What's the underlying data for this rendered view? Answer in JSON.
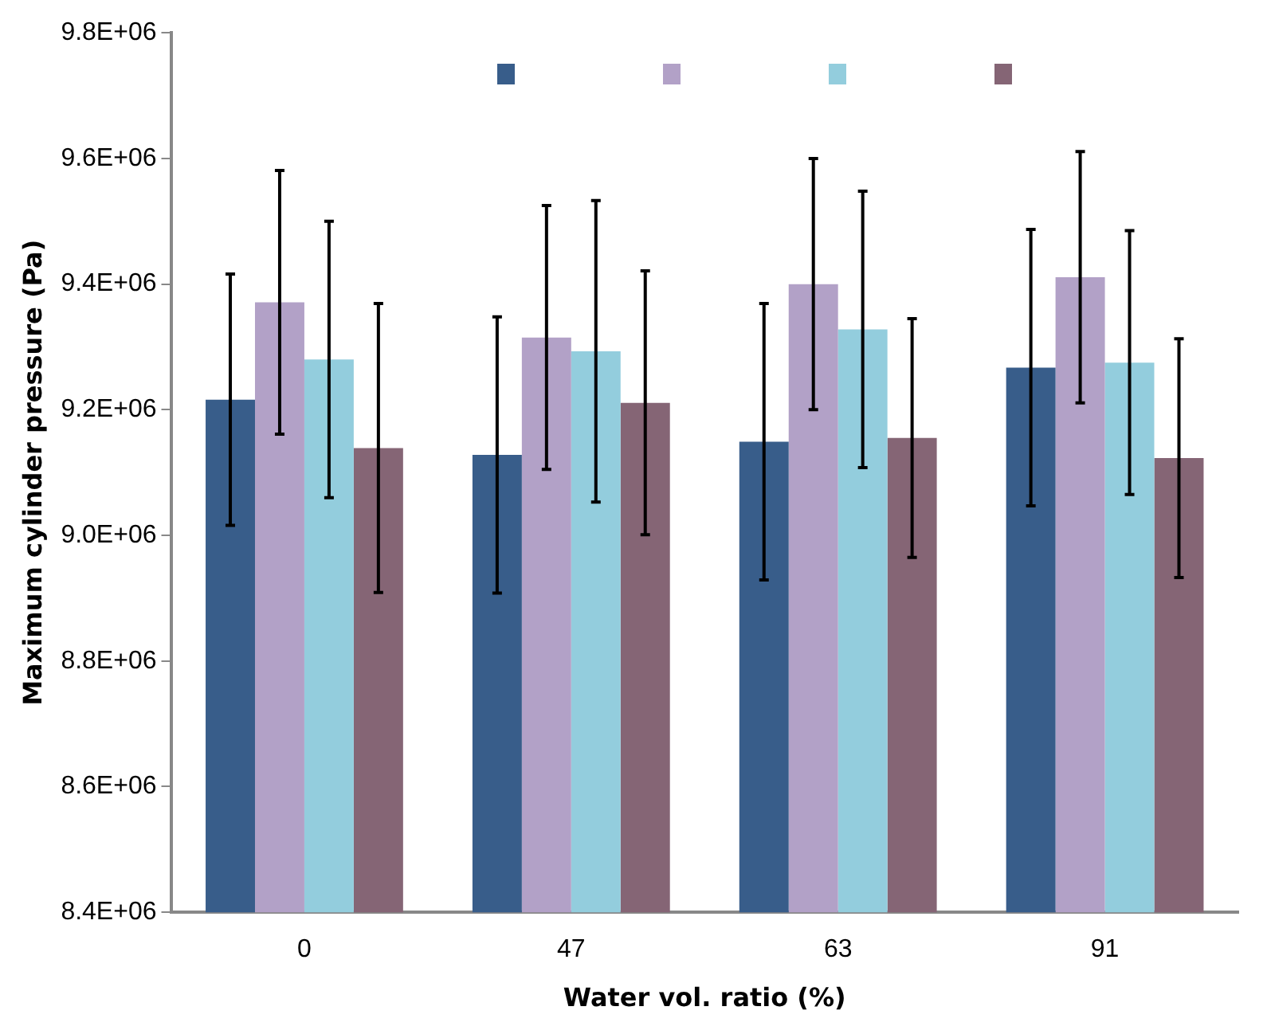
{
  "chart_data": {
    "type": "bar",
    "xlabel": "Water vol. ratio (%)",
    "ylabel": "Maximum cylinder pressure (Pa)",
    "categories": [
      "0",
      "47",
      "63",
      "91"
    ],
    "series": [
      {
        "color": "#385d8a",
        "values": [
          9216000,
          9128000,
          9149000,
          9267000
        ],
        "errors": [
          200000,
          220000,
          220000,
          220000
        ]
      },
      {
        "color": "#b2a1c7",
        "values": [
          9371000,
          9315000,
          9400000,
          9411000
        ],
        "errors": [
          210000,
          210000,
          200000,
          200000
        ]
      },
      {
        "color": "#93cddd",
        "values": [
          9280000,
          9293000,
          9328000,
          9275000
        ],
        "errors": [
          220000,
          240000,
          220000,
          210000
        ]
      },
      {
        "color": "#856575",
        "values": [
          9139000,
          9211000,
          9155000,
          9123000
        ],
        "errors": [
          230000,
          210000,
          190000,
          190000
        ]
      }
    ],
    "ylim": [
      8400000,
      9800000
    ],
    "yticks": [
      {
        "value": 8400000,
        "label": "8.4E+06"
      },
      {
        "value": 8600000,
        "label": "8.6E+06"
      },
      {
        "value": 8800000,
        "label": "8.8E+06"
      },
      {
        "value": 9000000,
        "label": "9.0E+06"
      },
      {
        "value": 9200000,
        "label": "9.2E+06"
      },
      {
        "value": 9400000,
        "label": "9.4E+06"
      },
      {
        "value": 9600000,
        "label": "9.6E+06"
      },
      {
        "value": 9800000,
        "label": "9.8E+06"
      }
    ],
    "grid": false
  }
}
